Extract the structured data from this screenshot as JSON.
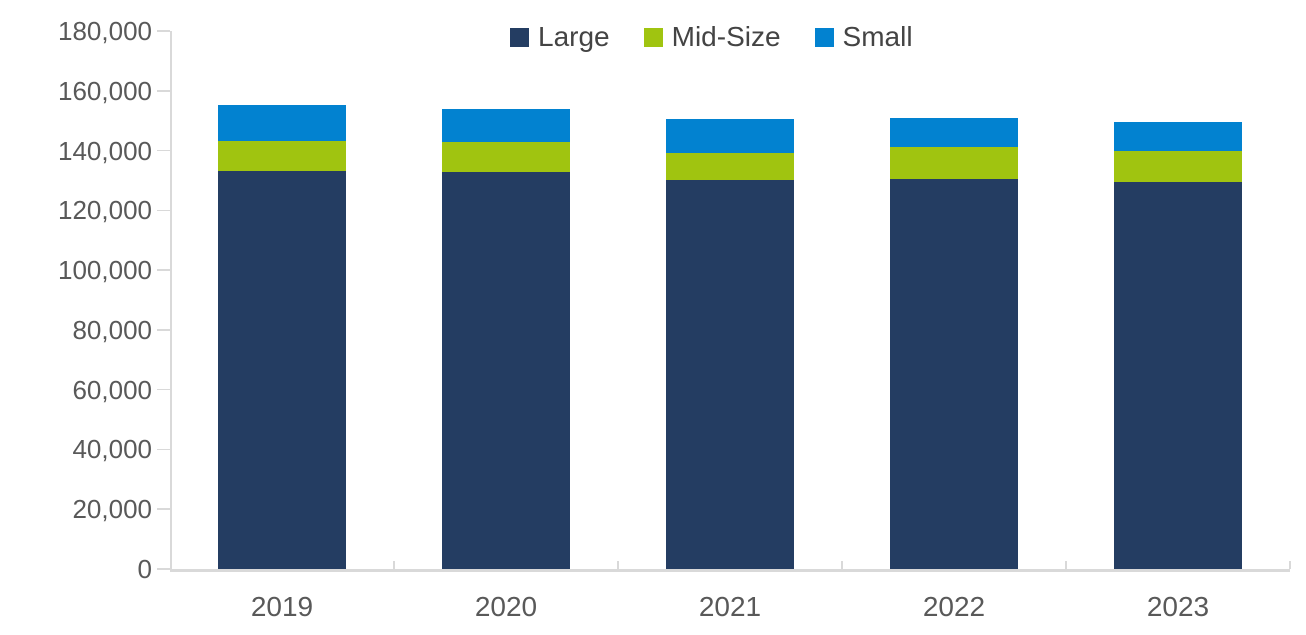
{
  "chart_data": {
    "type": "bar",
    "stacked": true,
    "title": "",
    "xlabel": "",
    "ylabel": "",
    "categories": [
      "2019",
      "2020",
      "2021",
      "2022",
      "2023"
    ],
    "series": [
      {
        "name": "Large",
        "color": "#243D62",
        "values": [
          133200,
          132900,
          130300,
          130600,
          129600
        ]
      },
      {
        "name": "Mid-Size",
        "color": "#A0C410",
        "values": [
          10100,
          10000,
          8900,
          10500,
          10100
        ]
      },
      {
        "name": "Small",
        "color": "#0282D0",
        "values": [
          12000,
          11100,
          11300,
          9900,
          9700
        ]
      }
    ],
    "totals": [
      155300,
      154000,
      150500,
      151000,
      149400
    ],
    "ylim": [
      0,
      180000
    ],
    "ytick_step": 20000,
    "ytick_labels": [
      "0",
      "20,000",
      "40,000",
      "60,000",
      "80,000",
      "100,000",
      "120,000",
      "140,000",
      "160,000",
      "180,000"
    ],
    "legend_position": "top",
    "grid": false,
    "axis_color": "#D9D9D9",
    "tick_label_color": "#595959",
    "legend_text_color": "#444444",
    "background": "#FFFFFF"
  }
}
